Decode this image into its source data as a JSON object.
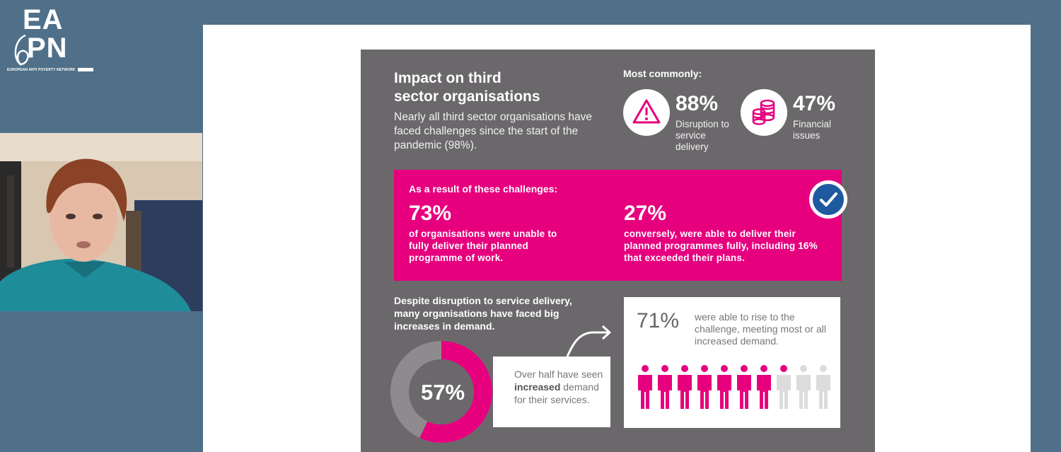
{
  "logo": {
    "letters_top": "EA",
    "letters_bottom": "PN",
    "tagline": "EUROPEAN ANTI POVERTY NETWORK"
  },
  "slide": {
    "title": "Impact on third sector organisations",
    "lead": "Nearly all third sector organisations have faced challenges since the start of the pandemic (98%).",
    "most_commonly": "Most commonly:",
    "stats": [
      {
        "value": "88%",
        "label": "Disruption to service delivery",
        "icon": "warning-icon"
      },
      {
        "value": "47%",
        "label": "Financial issues",
        "icon": "coins-icon"
      }
    ],
    "banner": {
      "heading": "As a result of these challenges:",
      "left_value": "73%",
      "left_text": "of organisations were unable to fully deliver their planned programme of work.",
      "right_value": "27%",
      "right_text": "conversely, were able to deliver their planned programmes fully, including 16% that exceeded their plans."
    },
    "demand_text": "Despite disruption to service delivery, many organisations have faced big increases in demand.",
    "donut_value": "57%",
    "donut_fraction": 0.57,
    "over_half_text_pre": "Over half have seen ",
    "over_half_text_bold": "increased",
    "over_half_text_post": " demand for their services.",
    "right_value": "71%",
    "right_text": "were able to rise to the challenge, meeting most or all increased demand.",
    "people_total": 10,
    "people_filled": 7.1
  },
  "colors": {
    "magenta": "#e6007e",
    "card": "#6b686b",
    "background": "#507089",
    "check_blue": "#1e5aa0"
  }
}
